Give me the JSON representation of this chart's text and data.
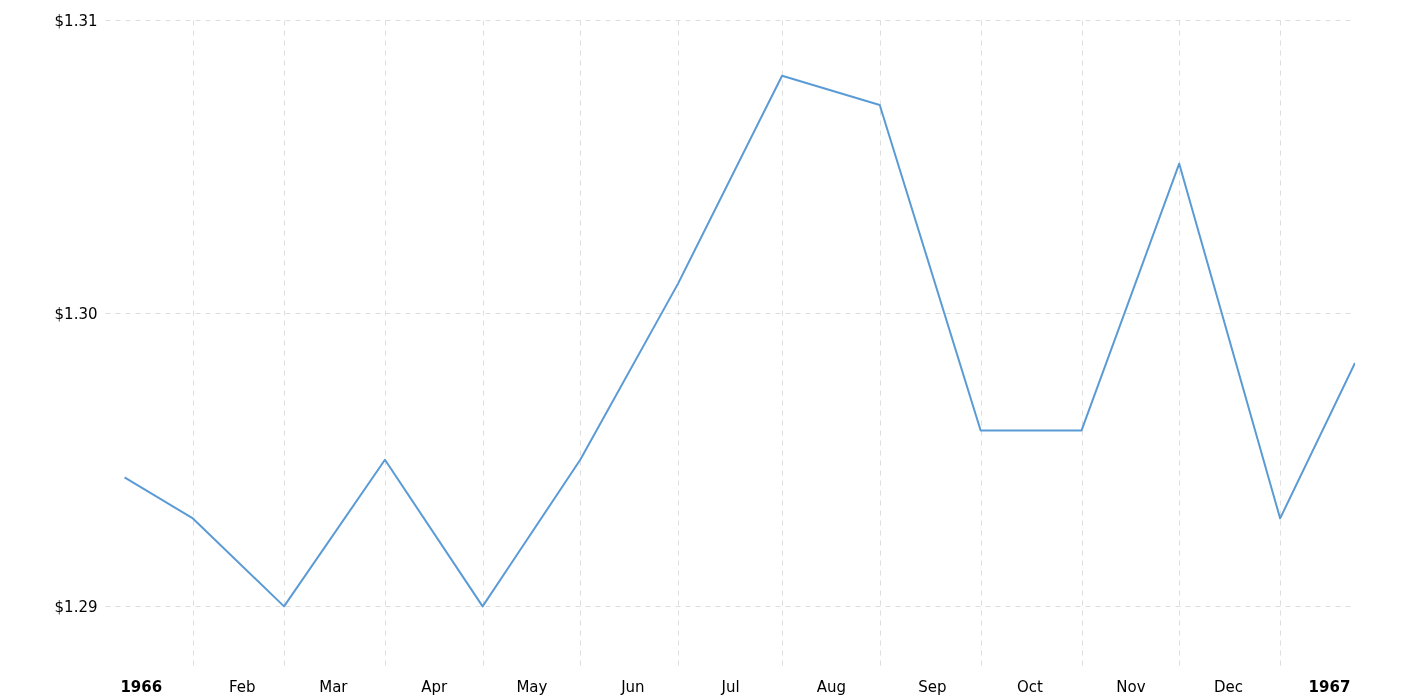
{
  "chart_data": {
    "type": "line",
    "x": [
      "1965-12-27",
      "1966-01-17",
      "1966-02-14",
      "1966-03-17",
      "1966-04-16",
      "1966-05-16",
      "1966-06-15",
      "1966-07-17",
      "1966-08-16",
      "1966-09-16",
      "1966-10-17",
      "1966-11-16",
      "1966-12-17",
      "1967-01-09"
    ],
    "series": [
      {
        "color": "#5b9bd5",
        "values": [
          1.2944,
          1.293,
          1.29,
          1.295,
          1.29,
          1.295,
          1.301,
          1.3081,
          1.3071,
          1.296,
          1.296,
          1.3051,
          1.293,
          1.2983
        ]
      }
    ],
    "xlim": [
      "1965-12-21",
      "1967-01-09"
    ],
    "xticks": [
      {
        "value": "1966-01-01",
        "label": "1966"
      },
      {
        "value": "1966-01-17",
        "label": null
      },
      {
        "value": "1966-02-01",
        "label": "Feb"
      },
      {
        "value": "1966-02-14",
        "label": null
      },
      {
        "value": "1966-03-01",
        "label": "Mar"
      },
      {
        "value": "1966-03-17",
        "label": null
      },
      {
        "value": "1966-04-01",
        "label": "Apr"
      },
      {
        "value": "1966-04-16",
        "label": null
      },
      {
        "value": "1966-05-01",
        "label": "May"
      },
      {
        "value": "1966-05-16",
        "label": null
      },
      {
        "value": "1966-06-01",
        "label": "Jun"
      },
      {
        "value": "1966-06-15",
        "label": null
      },
      {
        "value": "1966-07-01",
        "label": "Jul"
      },
      {
        "value": "1966-07-17",
        "label": null
      },
      {
        "value": "1966-08-01",
        "label": "Aug"
      },
      {
        "value": "1966-08-16",
        "label": null
      },
      {
        "value": "1966-09-01",
        "label": "Sep"
      },
      {
        "value": "1966-09-16",
        "label": null
      },
      {
        "value": "1966-10-01",
        "label": "Oct"
      },
      {
        "value": "1966-10-17",
        "label": null
      },
      {
        "value": "1966-11-01",
        "label": "Nov"
      },
      {
        "value": "1966-11-16",
        "label": null
      },
      {
        "value": "1966-12-01",
        "label": "Dec"
      },
      {
        "value": "1966-12-17",
        "label": null
      },
      {
        "value": "1967-01-01",
        "label": "1967"
      }
    ],
    "ylim": [
      1.288,
      1.31
    ],
    "yticks": [
      {
        "value": 1.29,
        "label": "$1.29"
      },
      {
        "value": 1.3,
        "label": "$1.30"
      },
      {
        "value": 1.31,
        "label": "$1.31"
      }
    ],
    "grid": true,
    "line_style": "solid"
  }
}
